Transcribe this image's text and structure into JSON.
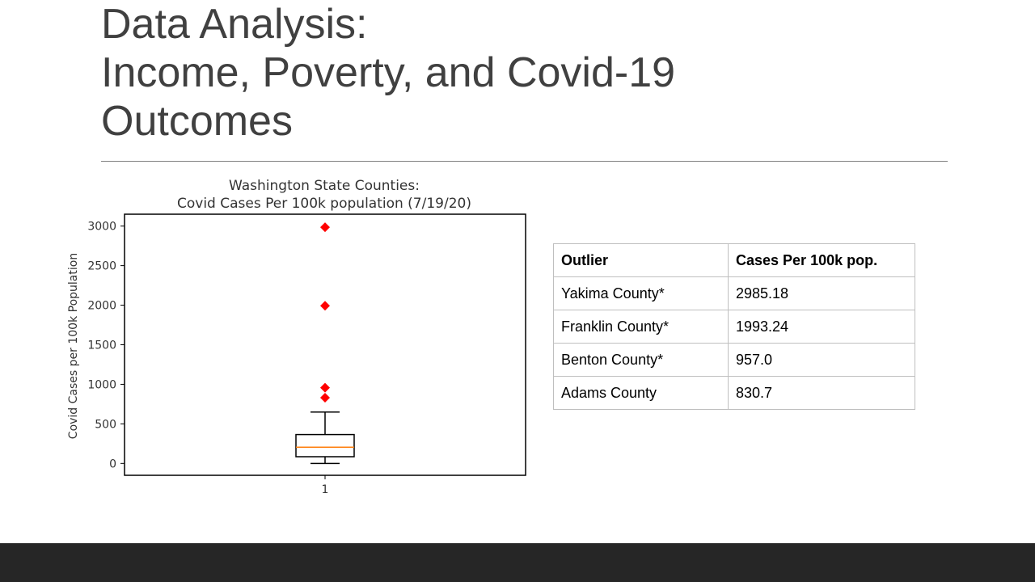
{
  "slide": {
    "title_lines": [
      "Data Analysis:",
      "Income, Poverty, and Covid-19",
      "Outcomes"
    ]
  },
  "chart_data": {
    "type": "box",
    "title": [
      "Washington State Counties:",
      "Covid Cases Per 100k population (7/19/20)"
    ],
    "xlabel": "",
    "ylabel": "Covid Cases per 100k Population",
    "categories": [
      "1"
    ],
    "ylim": [
      -150,
      3150
    ],
    "yticks": [
      0,
      500,
      1000,
      1500,
      2000,
      2500,
      3000
    ],
    "box": {
      "whisker_low": 0,
      "q1": 85,
      "median": 205,
      "q3": 365,
      "whisker_high": 650
    },
    "outliers": [
      2985.18,
      1993.24,
      957.0,
      830.7
    ],
    "colors": {
      "median": "#ff7f0e",
      "outlier": "#ff0000",
      "box": "#000000"
    }
  },
  "table": {
    "headers": [
      "Outlier",
      "Cases Per 100k pop."
    ],
    "rows": [
      [
        "Yakima County*",
        "2985.18"
      ],
      [
        "Franklin County*",
        "1993.24"
      ],
      [
        "Benton County*",
        "957.0"
      ],
      [
        "Adams County",
        "830.7"
      ]
    ]
  }
}
